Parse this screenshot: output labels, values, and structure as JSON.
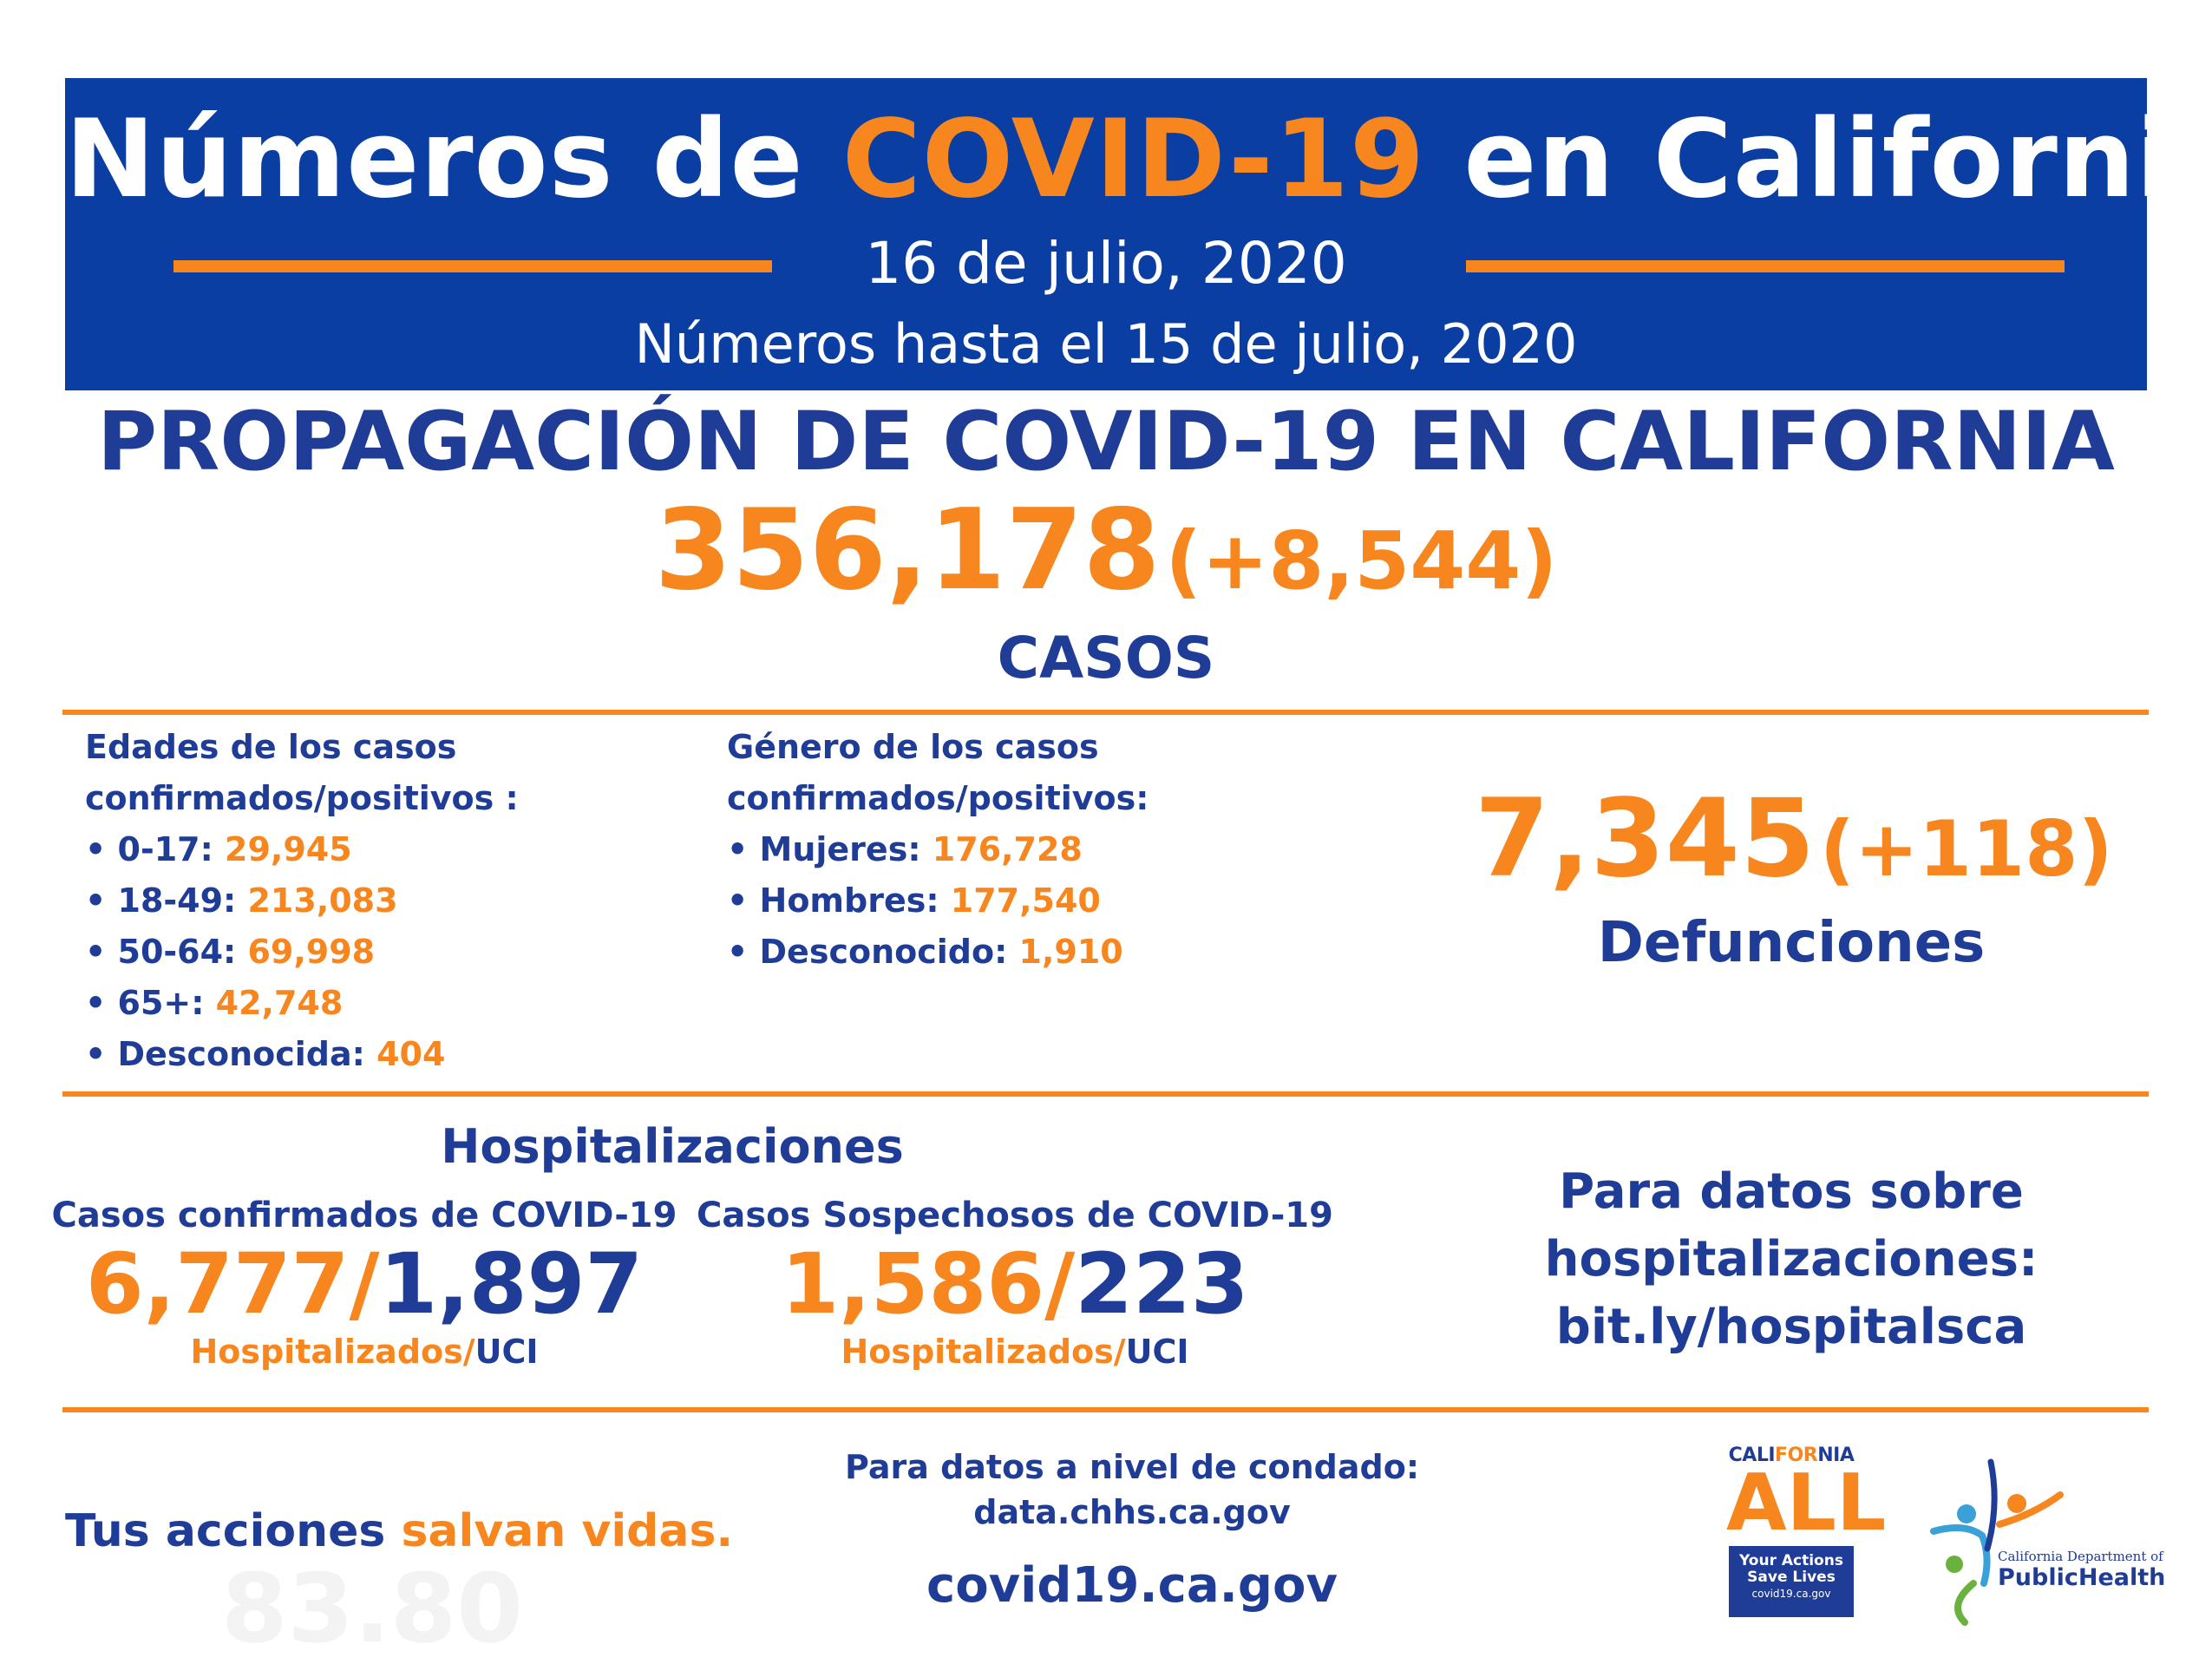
{
  "header": {
    "title_pre": "Números de ",
    "title_highlight": "COVID-19",
    "title_post": " en California",
    "date": "16 de julio, 2020",
    "as_of": "Números hasta el 15 de julio, 2020"
  },
  "spread": {
    "heading": "PROPAGACIÓN DE COVID-19 EN CALIFORNIA",
    "total": "356,178",
    "change": "(+8,544)",
    "label": "CASOS"
  },
  "ages": {
    "heading_line1": "Edades de los casos",
    "heading_line2": "confirmados/positivos :",
    "items": [
      {
        "label": "• 0-17: ",
        "value": "29,945"
      },
      {
        "label": "• 18-49: ",
        "value": "213,083"
      },
      {
        "label": "• 50-64: ",
        "value": "69,998"
      },
      {
        "label": "• 65+: ",
        "value": "42,748"
      },
      {
        "label": "• Desconocida: ",
        "value": "404"
      }
    ]
  },
  "gender": {
    "heading_line1": "Género de los casos",
    "heading_line2": "confirmados/positivos:",
    "items": [
      {
        "label": "• Mujeres: ",
        "value": "176,728"
      },
      {
        "label": "• Hombres: ",
        "value": "177,540"
      },
      {
        "label": "• Desconocido: ",
        "value": "1,910"
      }
    ]
  },
  "deaths": {
    "total": "7,345",
    "change": "(+118)",
    "label": "Defunciones"
  },
  "hospitalizations": {
    "heading": "Hospitalizaciones",
    "confirmed": {
      "label": "Casos confirmados de COVID-19",
      "hospitalized": "6,777",
      "icu": "1,897",
      "unit_hosp": "Hospitalizados",
      "unit_icu": "UCI"
    },
    "suspected": {
      "label": "Casos Sospechosos de COVID-19",
      "hospitalized": "1,586",
      "icu": "223",
      "unit_hosp": "Hospitalizados",
      "unit_icu": "UCI"
    },
    "more_line1": "Para datos sobre",
    "more_line2": "hospitalizaciones:",
    "more_link": "bit.ly/hospitalsca"
  },
  "footer": {
    "slogan_pre": "Tus acciones ",
    "slogan_highlight": "salvan vidas.",
    "ghost_text": "83.80",
    "county_line1": "Para datos a nivel de condado:",
    "county_link": "data.chhs.ca.gov",
    "site": "covid19.ca.gov"
  },
  "logos": {
    "ca_name_pre": "CALI",
    "ca_name_for": "FOR",
    "ca_name_post": "NIA",
    "ca_all": "ALL",
    "ca_box_line1": "Your Actions",
    "ca_box_line2": "Save Lives",
    "ca_box_url": "covid19.ca.gov",
    "cdph_dept": "California Department of",
    "cdph_name": "PublicHealth"
  },
  "colors": {
    "banner": "#0a3ea3",
    "navy": "#1f3c96",
    "orange": "#f7861e"
  }
}
